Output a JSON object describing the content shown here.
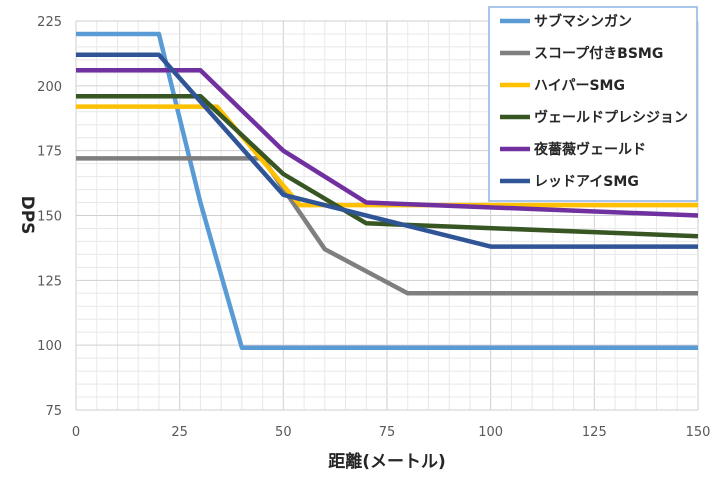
{
  "chart_data": {
    "type": "line",
    "title": "",
    "xlabel": "距離(メートル)",
    "ylabel": "DPS",
    "xlim": [
      0,
      150
    ],
    "ylim": [
      75,
      225
    ],
    "xticks": [
      0,
      25,
      50,
      75,
      100,
      125,
      150
    ],
    "yticks": [
      75,
      100,
      125,
      150,
      175,
      200,
      225
    ],
    "grid": true,
    "legend_position": "top-right",
    "series": [
      {
        "name": "サブマシンガン",
        "color": "#5B9BD5",
        "points": [
          [
            0,
            220
          ],
          [
            20,
            220
          ],
          [
            30,
            155
          ],
          [
            40,
            99
          ],
          [
            150,
            99
          ]
        ]
      },
      {
        "name": "スコープ付きBSMG",
        "color": "#7F7F7F",
        "points": [
          [
            0,
            172
          ],
          [
            45,
            172
          ],
          [
            60,
            137
          ],
          [
            80,
            120
          ],
          [
            150,
            120
          ]
        ]
      },
      {
        "name": "ハイパーSMG",
        "color": "#FFC000",
        "points": [
          [
            0,
            192
          ],
          [
            34,
            192
          ],
          [
            54,
            154
          ],
          [
            150,
            154
          ]
        ]
      },
      {
        "name": "ヴェールドプレシジョン",
        "color": "#375623",
        "points": [
          [
            0,
            196
          ],
          [
            30,
            196
          ],
          [
            50,
            166
          ],
          [
            70,
            147
          ],
          [
            150,
            142
          ]
        ]
      },
      {
        "name": "夜薔薇ヴェールド",
        "color": "#7030A0",
        "points": [
          [
            0,
            206
          ],
          [
            30,
            206
          ],
          [
            50,
            175
          ],
          [
            70,
            155
          ],
          [
            150,
            150
          ]
        ]
      },
      {
        "name": "レッドアイSMG",
        "color": "#2F5597",
        "points": [
          [
            0,
            212
          ],
          [
            20,
            212
          ],
          [
            50,
            158
          ],
          [
            100,
            138
          ],
          [
            150,
            138
          ]
        ]
      }
    ]
  }
}
